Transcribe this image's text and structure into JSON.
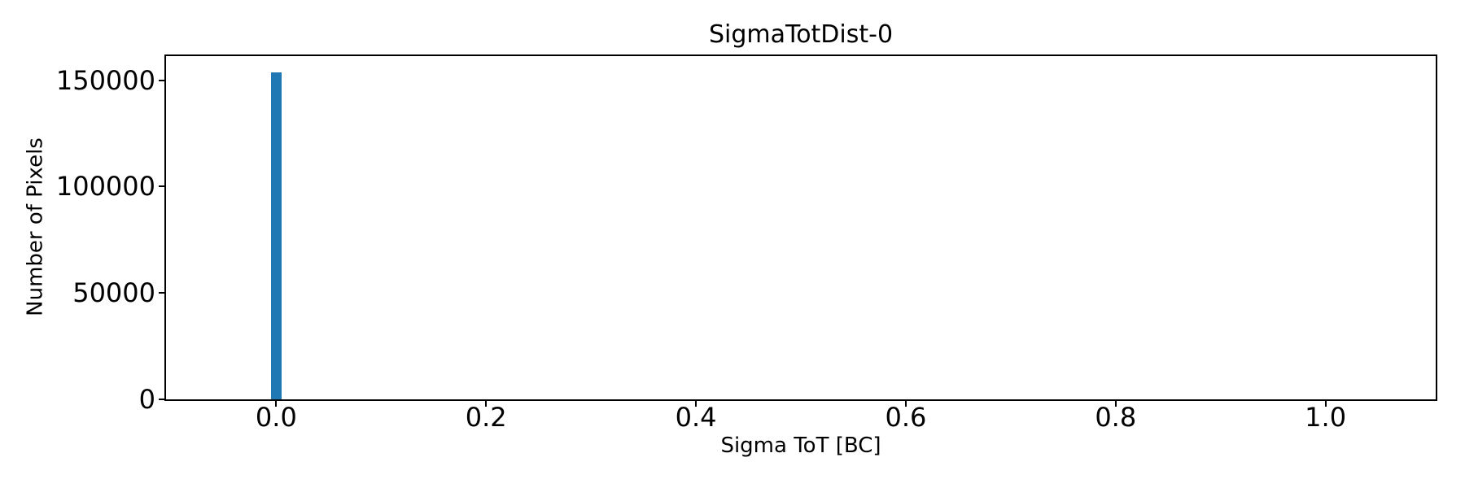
{
  "chart_data": {
    "type": "bar",
    "subtype": "histogram",
    "title": "SigmaTotDist-0",
    "xlabel": "Sigma ToT [BC]",
    "ylabel": "Number of Pixels",
    "xlim": [
      -0.105,
      1.105
    ],
    "ylim": [
      0,
      161280
    ],
    "x_ticks": [
      0.0,
      0.2,
      0.4,
      0.6,
      0.8,
      1.0
    ],
    "x_tick_labels": [
      "0.0",
      "0.2",
      "0.4",
      "0.6",
      "0.8",
      "1.0"
    ],
    "y_ticks": [
      0,
      50000,
      100000,
      150000
    ],
    "y_tick_labels": [
      "0",
      "50000",
      "100000",
      "150000"
    ],
    "bins": [
      {
        "x0": -0.005,
        "x1": 0.005,
        "count": 153600
      }
    ],
    "bar_color": "#1f77b4",
    "grid": false,
    "legend": null,
    "spine_color": "#000000",
    "background_color": "#ffffff"
  }
}
